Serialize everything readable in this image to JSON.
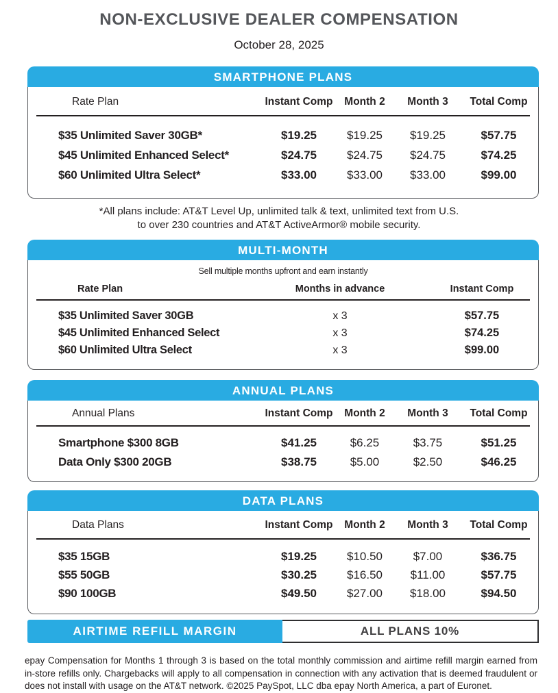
{
  "page": {
    "title": "NON-EXCLUSIVE DEALER COMPENSATION",
    "date": "October 28, 2025"
  },
  "colors": {
    "accent_blue": "#29ABE2",
    "title_gray": "#54565A",
    "text_dark": "#231F20"
  },
  "smartphone": {
    "title": "SMARTPHONE PLANS",
    "columns": [
      "Rate Plan",
      "Instant Comp",
      "Month 2",
      "Month 3",
      "Total Comp"
    ],
    "rows": [
      {
        "plan": "$35 Unlimited Saver 30GB*",
        "instant": "$19.25",
        "m2": "$19.25",
        "m3": "$19.25",
        "total": "$57.75"
      },
      {
        "plan": "$45 Unlimited Enhanced Select*",
        "instant": "$24.75",
        "m2": "$24.75",
        "m3": "$24.75",
        "total": "$74.25"
      },
      {
        "plan": "$60 Unlimited Ultra Select*",
        "instant": "$33.00",
        "m2": "$33.00",
        "m3": "$33.00",
        "total": "$99.00"
      }
    ],
    "footnote_line1": "*All plans include: AT&T Level Up, unlimited talk & text, unlimited text from U.S.",
    "footnote_line2": "to over 230 countries and AT&T ActiveArmor® mobile security."
  },
  "multi_month": {
    "title": "MULTI-MONTH",
    "subtitle": "Sell multiple months upfront and earn instantly",
    "columns": [
      "Rate Plan",
      "Months in advance",
      "Instant Comp"
    ],
    "rows": [
      {
        "plan": "$35 Unlimited Saver 30GB",
        "months": "x 3",
        "instant": "$57.75"
      },
      {
        "plan": "$45 Unlimited Enhanced Select",
        "months": "x 3",
        "instant": "$74.25"
      },
      {
        "plan": "$60 Unlimited Ultra Select",
        "months": "x 3",
        "instant": "$99.00"
      }
    ]
  },
  "annual": {
    "title": "ANNUAL PLANS",
    "columns": [
      "Annual Plans",
      "Instant Comp",
      "Month 2",
      "Month 3",
      "Total Comp"
    ],
    "rows": [
      {
        "plan": "Smartphone $300 8GB",
        "instant": "$41.25",
        "m2": "$6.25",
        "m3": "$3.75",
        "total": "$51.25"
      },
      {
        "plan": "Data Only $300 20GB",
        "instant": "$38.75",
        "m2": "$5.00",
        "m3": "$2.50",
        "total": "$46.25"
      }
    ]
  },
  "data_plans": {
    "title": "DATA PLANS",
    "columns": [
      "Data Plans",
      "Instant Comp",
      "Month 2",
      "Month 3",
      "Total Comp"
    ],
    "rows": [
      {
        "plan": "$35 15GB",
        "instant": "$19.25",
        "m2": "$10.50",
        "m3": "$7.00",
        "total": "$36.75"
      },
      {
        "plan": "$55 50GB",
        "instant": "$30.25",
        "m2": "$16.50",
        "m3": "$11.00",
        "total": "$57.75"
      },
      {
        "plan": "$90 100GB",
        "instant": "$49.50",
        "m2": "$27.00",
        "m3": "$18.00",
        "total": "$94.50"
      }
    ]
  },
  "airtime": {
    "label": "AIRTIME REFILL MARGIN",
    "value": "ALL PLANS 10%"
  },
  "footer": "epay Compensation for Months 1 through 3 is based on the total monthly commission and airtime refill margin earned from in-store refills only. Chargebacks will apply to all compensation in connection with any activation that is deemed fraudulent or does not install with usage on the AT&T network. ©2025 PaySpot, LLC dba epay North America, a part of Euronet."
}
